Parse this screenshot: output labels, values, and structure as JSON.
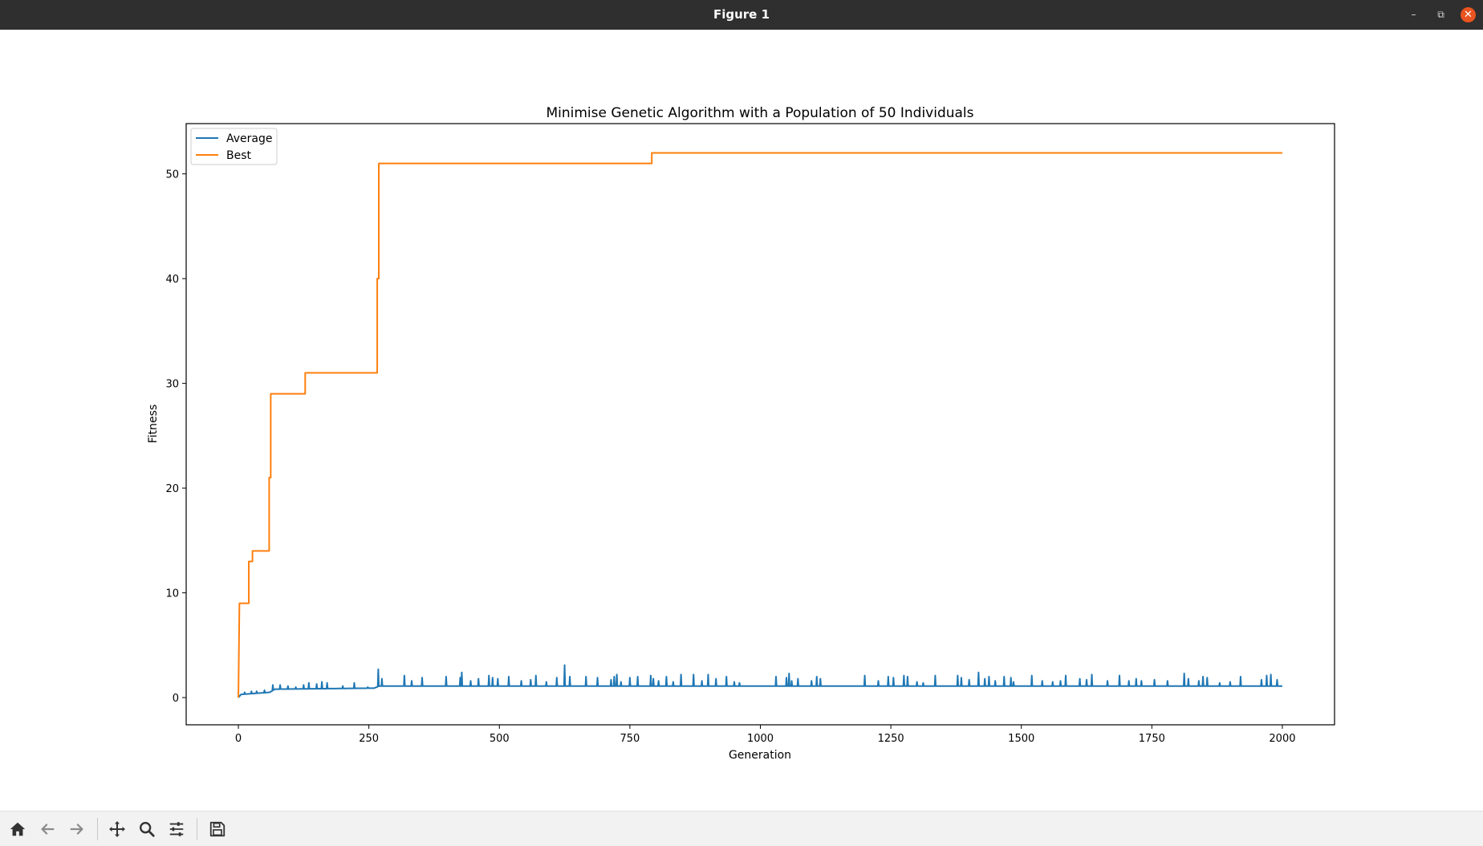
{
  "window": {
    "title": "Figure 1",
    "controls": {
      "minimize_icon": "minimize-icon",
      "maximize_icon": "maximize-icon",
      "close_icon": "close-icon"
    }
  },
  "colors": {
    "titlebar": "#2f2f2f",
    "close_button": "#e95420",
    "average": "#1f77b4",
    "best": "#ff7f0e",
    "toolbar_bg": "#f2f2f2",
    "toolbar_icon": "#333333"
  },
  "toolbar": {
    "buttons": [
      {
        "name": "home-button",
        "icon": "home-icon"
      },
      {
        "name": "back-button",
        "icon": "arrow-left-icon"
      },
      {
        "name": "forward-button",
        "icon": "arrow-right-icon"
      },
      {
        "name": "pan-button",
        "icon": "move-icon"
      },
      {
        "name": "zoom-button",
        "icon": "magnifier-icon"
      },
      {
        "name": "configure-subplots-button",
        "icon": "sliders-icon"
      },
      {
        "name": "save-button",
        "icon": "floppy-disk-icon"
      }
    ]
  },
  "chart_data": {
    "type": "line",
    "title": "Minimise Genetic Algorithm with a Population of 50 Individuals",
    "xlabel": "Generation",
    "ylabel": "Fitness",
    "xlim": [
      -100,
      2100
    ],
    "ylim": [
      -2.6,
      54.8
    ],
    "xticks": [
      0,
      250,
      500,
      750,
      1000,
      1250,
      1500,
      1750,
      2000
    ],
    "yticks": [
      0,
      10,
      20,
      30,
      40,
      50
    ],
    "grid": false,
    "legend": {
      "location": "upper-left",
      "entries": [
        "Average",
        "Best"
      ]
    },
    "series": [
      {
        "name": "Best",
        "color": "#ff7f0e",
        "x": [
          0,
          2,
          2,
          20,
          20,
          27,
          27,
          37,
          37,
          59,
          59,
          62,
          62,
          128,
          128,
          266,
          266,
          269,
          269,
          792,
          792,
          2000
        ],
        "y": [
          0,
          9,
          9,
          9,
          13,
          13,
          14,
          14,
          14,
          14,
          21,
          21,
          29,
          29,
          31,
          31,
          40,
          40,
          51,
          51,
          52,
          52
        ]
      },
      {
        "name": "Average",
        "color": "#1f77b4",
        "baseline": [
          [
            0,
            0.0
          ],
          [
            5,
            0.3
          ],
          [
            60,
            0.5
          ],
          [
            70,
            0.8
          ],
          [
            260,
            0.9
          ],
          [
            270,
            1.1
          ],
          [
            2000,
            1.1
          ]
        ],
        "spikes": [
          [
            12,
            0.5
          ],
          [
            25,
            0.6
          ],
          [
            35,
            0.6
          ],
          [
            50,
            0.7
          ],
          [
            66,
            1.2
          ],
          [
            80,
            1.2
          ],
          [
            95,
            1.1
          ],
          [
            110,
            1.0
          ],
          [
            125,
            1.2
          ],
          [
            135,
            1.4
          ],
          [
            150,
            1.3
          ],
          [
            160,
            1.5
          ],
          [
            170,
            1.4
          ],
          [
            200,
            1.1
          ],
          [
            222,
            1.4
          ],
          [
            248,
            1.0
          ],
          [
            268,
            2.7
          ],
          [
            275,
            1.8
          ],
          [
            318,
            2.1
          ],
          [
            332,
            1.6
          ],
          [
            352,
            1.9
          ],
          [
            398,
            2.0
          ],
          [
            425,
            1.9
          ],
          [
            428,
            2.4
          ],
          [
            445,
            1.6
          ],
          [
            460,
            1.8
          ],
          [
            480,
            2.1
          ],
          [
            487,
            1.9
          ],
          [
            497,
            1.8
          ],
          [
            518,
            2.0
          ],
          [
            542,
            1.6
          ],
          [
            560,
            1.7
          ],
          [
            570,
            2.1
          ],
          [
            590,
            1.5
          ],
          [
            610,
            1.9
          ],
          [
            625,
            3.1
          ],
          [
            635,
            2.0
          ],
          [
            666,
            2.0
          ],
          [
            688,
            1.9
          ],
          [
            714,
            1.7
          ],
          [
            720,
            2.0
          ],
          [
            725,
            2.2
          ],
          [
            733,
            1.5
          ],
          [
            750,
            1.9
          ],
          [
            765,
            2.0
          ],
          [
            790,
            2.1
          ],
          [
            795,
            1.8
          ],
          [
            805,
            1.6
          ],
          [
            820,
            2.0
          ],
          [
            833,
            1.5
          ],
          [
            848,
            2.2
          ],
          [
            872,
            2.2
          ],
          [
            888,
            1.6
          ],
          [
            900,
            2.2
          ],
          [
            915,
            1.8
          ],
          [
            935,
            2.0
          ],
          [
            950,
            1.5
          ],
          [
            960,
            1.4
          ],
          [
            1030,
            2.0
          ],
          [
            1050,
            1.9
          ],
          [
            1055,
            2.3
          ],
          [
            1060,
            1.6
          ],
          [
            1072,
            1.8
          ],
          [
            1098,
            1.6
          ],
          [
            1108,
            2.0
          ],
          [
            1115,
            1.8
          ],
          [
            1200,
            2.1
          ],
          [
            1226,
            1.6
          ],
          [
            1245,
            2.0
          ],
          [
            1255,
            1.9
          ],
          [
            1275,
            2.1
          ],
          [
            1282,
            2.0
          ],
          [
            1300,
            1.5
          ],
          [
            1312,
            1.4
          ],
          [
            1335,
            2.1
          ],
          [
            1378,
            2.1
          ],
          [
            1385,
            1.9
          ],
          [
            1400,
            1.7
          ],
          [
            1418,
            2.4
          ],
          [
            1430,
            1.8
          ],
          [
            1438,
            2.0
          ],
          [
            1450,
            1.6
          ],
          [
            1467,
            2.0
          ],
          [
            1480,
            1.9
          ],
          [
            1485,
            1.5
          ],
          [
            1520,
            2.1
          ],
          [
            1540,
            1.6
          ],
          [
            1560,
            1.5
          ],
          [
            1575,
            1.6
          ],
          [
            1585,
            2.1
          ],
          [
            1612,
            1.8
          ],
          [
            1625,
            1.7
          ],
          [
            1635,
            2.2
          ],
          [
            1665,
            1.6
          ],
          [
            1688,
            2.1
          ],
          [
            1706,
            1.6
          ],
          [
            1720,
            1.8
          ],
          [
            1730,
            1.6
          ],
          [
            1755,
            1.7
          ],
          [
            1780,
            1.6
          ],
          [
            1812,
            2.3
          ],
          [
            1820,
            1.8
          ],
          [
            1840,
            1.6
          ],
          [
            1848,
            2.0
          ],
          [
            1856,
            1.9
          ],
          [
            1880,
            1.4
          ],
          [
            1900,
            1.5
          ],
          [
            1920,
            2.0
          ],
          [
            1960,
            1.7
          ],
          [
            1970,
            2.1
          ],
          [
            1978,
            2.2
          ],
          [
            1990,
            1.7
          ]
        ]
      }
    ]
  }
}
